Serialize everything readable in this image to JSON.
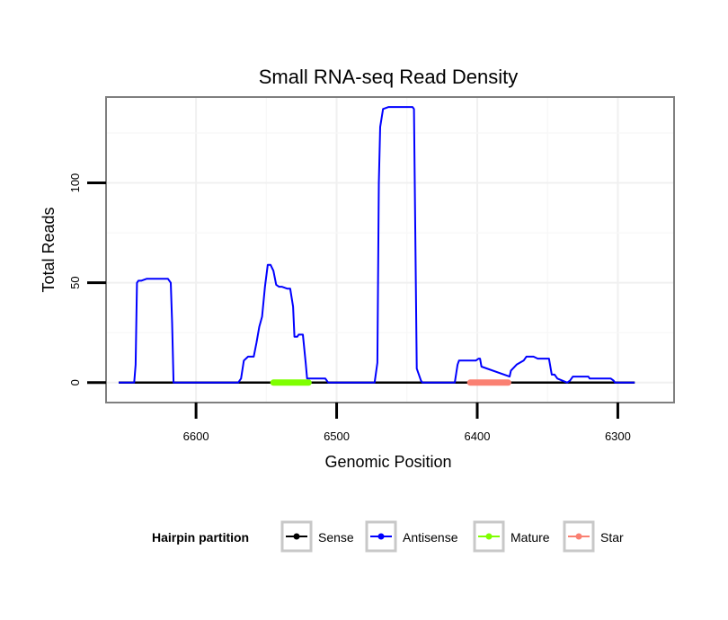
{
  "chart_data": {
    "type": "line",
    "title": "Small RNA-seq Read Density",
    "xlabel": "Genomic Position",
    "ylabel": "Total Reads",
    "x_reversed": true,
    "xlim": [
      6664,
      6260
    ],
    "ylim": [
      -10,
      143
    ],
    "x_ticks": [
      6600,
      6500,
      6400,
      6300
    ],
    "x_tick_labels": [
      "6600",
      "6500",
      "6400",
      "6300"
    ],
    "y_ticks": [
      0,
      50,
      100
    ],
    "y_tick_labels": [
      "0",
      "50",
      "100"
    ],
    "grid": true,
    "legend": {
      "title": "Hairpin partition",
      "position": "bottom",
      "entries": [
        "Sense",
        "Antisense",
        "Mature",
        "Star"
      ]
    },
    "series": [
      {
        "name": "Sense",
        "color": "#000000",
        "x": [
          6655,
          6288
        ],
        "y": [
          0,
          0
        ]
      },
      {
        "name": "Antisense",
        "color": "#0000ff",
        "x": [
          6655,
          6644,
          6643,
          6642,
          6641,
          6639,
          6635,
          6620,
          6618,
          6617,
          6616,
          6570,
          6568,
          6566,
          6563,
          6559,
          6557,
          6555,
          6553,
          6551,
          6549,
          6547,
          6545,
          6543,
          6541,
          6539,
          6535,
          6533,
          6531,
          6530,
          6529,
          6528,
          6527,
          6524,
          6522,
          6521,
          6508,
          6507,
          6506,
          6473,
          6471,
          6470,
          6469,
          6467,
          6463,
          6446,
          6445,
          6443,
          6440,
          6439,
          6416,
          6414,
          6413,
          6401,
          6399,
          6398,
          6397,
          6377,
          6376,
          6372,
          6367,
          6365,
          6363,
          6360,
          6357,
          6349,
          6347,
          6345,
          6343,
          6336,
          6334,
          6332,
          6330,
          6323,
          6321,
          6320,
          6305,
          6303,
          6302,
          6300,
          6288
        ],
        "y": [
          0,
          0,
          9,
          50,
          51,
          51,
          52,
          52,
          50,
          30,
          0,
          0,
          2,
          11,
          13,
          13,
          20,
          28,
          33,
          48,
          59,
          59,
          56,
          49,
          48,
          48,
          47,
          47,
          38,
          23,
          23,
          23,
          24,
          24,
          10,
          2,
          2,
          1,
          0,
          0,
          10,
          100,
          128,
          137,
          138,
          138,
          137,
          7,
          1,
          0,
          0,
          9,
          11,
          11,
          12,
          12,
          8,
          3,
          6,
          9,
          11,
          13,
          13,
          13,
          12,
          12,
          4,
          4,
          2,
          0,
          1,
          3,
          3,
          3,
          3,
          2,
          2,
          1,
          0,
          0,
          0
        ]
      },
      {
        "name": "Mature",
        "color": "#7fff00",
        "x": [
          6545,
          6520
        ],
        "y": [
          0,
          0
        ]
      },
      {
        "name": "Star",
        "color": "#fa8072",
        "x": [
          6405,
          6378
        ],
        "y": [
          0,
          0
        ]
      }
    ]
  }
}
